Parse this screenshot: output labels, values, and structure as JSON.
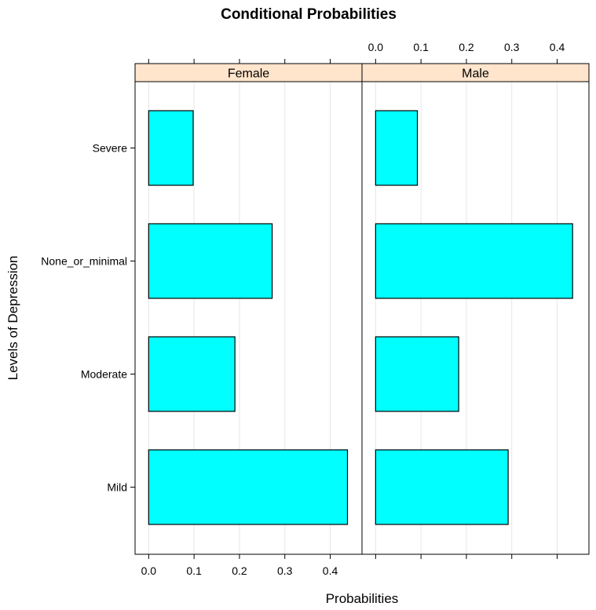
{
  "chart_data": {
    "type": "bar",
    "title": "Conditional Probabilities",
    "xlabel": "Probabilities",
    "ylabel": "Levels of Depression",
    "categories": [
      "Mild",
      "Moderate",
      "None_or_minimal",
      "Severe"
    ],
    "panels": [
      {
        "name": "Female",
        "values": [
          0.438,
          0.19,
          0.272,
          0.098
        ]
      },
      {
        "name": "Male",
        "values": [
          0.292,
          0.183,
          0.434,
          0.092
        ]
      }
    ],
    "xlim": [
      -0.03,
      0.47
    ],
    "xticks": [
      0.0,
      0.1,
      0.2,
      0.3,
      0.4
    ],
    "xtick_labels": [
      "0.0",
      "0.1",
      "0.2",
      "0.3",
      "0.4"
    ],
    "grid": true,
    "colors": {
      "bar_fill": "#00ffff",
      "bar_stroke": "#000000",
      "strip_fill": "#ffe5cc",
      "grid": "#e6e6e6"
    }
  }
}
